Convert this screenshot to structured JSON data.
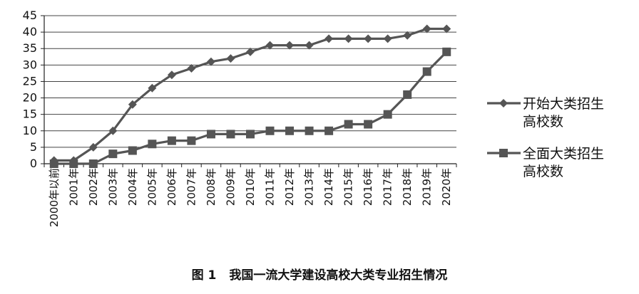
{
  "chart_data": {
    "type": "line",
    "categories": [
      "2000年以前",
      "2001年",
      "2002年",
      "2003年",
      "2004年",
      "2005年",
      "2006年",
      "2007年",
      "2008年",
      "2009年",
      "2010年",
      "2011年",
      "2012年",
      "2013年",
      "2014年",
      "2015年",
      "2016年",
      "2017年",
      "2018年",
      "2019年",
      "2020年"
    ],
    "series": [
      {
        "name": "开始大类招生高校数",
        "marker": "diamond",
        "color": "#555555",
        "values": [
          1,
          1,
          5,
          10,
          18,
          23,
          27,
          29,
          31,
          32,
          34,
          36,
          36,
          36,
          38,
          38,
          38,
          38,
          39,
          41,
          41
        ]
      },
      {
        "name": "全面大类招生高校数",
        "marker": "square",
        "color": "#555555",
        "values": [
          0,
          0,
          0,
          3,
          4,
          6,
          7,
          7,
          9,
          9,
          9,
          10,
          10,
          10,
          10,
          12,
          12,
          15,
          21,
          28,
          34
        ]
      }
    ],
    "ylim": [
      0,
      45
    ],
    "yticks": [
      0,
      5,
      10,
      15,
      20,
      25,
      30,
      35,
      40,
      45
    ],
    "grid": true,
    "legend_position": "right",
    "legend": [
      {
        "lines": [
          "开始大类招生",
          "高校数"
        ]
      },
      {
        "lines": [
          "全面大类招生",
          "高校数"
        ]
      }
    ]
  },
  "caption": {
    "figure_no": "图 1",
    "title": "我国一流大学建设高校大类专业招生情况"
  }
}
